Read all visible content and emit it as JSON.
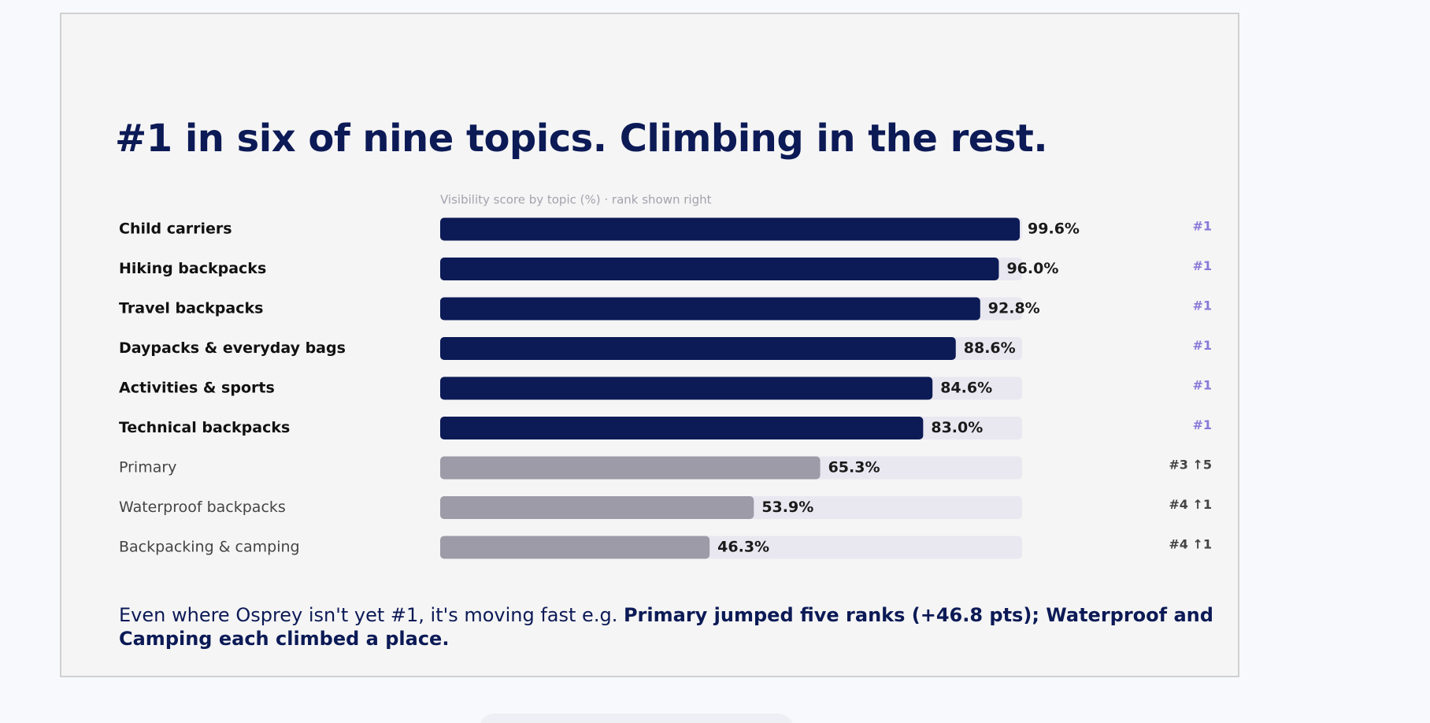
{
  "chart_data": {
    "type": "bar",
    "orientation": "horizontal",
    "title": "#1 in six of nine topics. Climbing in the rest.",
    "subtitle": "Visibility score by topic (%) · rank shown right",
    "categories": [
      "Child carriers",
      "Hiking backpacks",
      "Travel backpacks",
      "Daypacks & everyday bags",
      "Activities & sports",
      "Technical backpacks",
      "Primary",
      "Waterproof backpacks",
      "Backpacking & camping"
    ],
    "values": [
      99.6,
      96.0,
      92.8,
      88.6,
      84.6,
      83.0,
      65.3,
      53.9,
      46.3
    ],
    "value_labels": [
      "99.6%",
      "96.0%",
      "92.8%",
      "88.6%",
      "84.6%",
      "83.0%",
      "65.3%",
      "53.9%",
      "46.3%"
    ],
    "colors": [
      "#0c1a56",
      "#0c1a56",
      "#0c1a56",
      "#0c1a56",
      "#0c1a56",
      "#0c1a56",
      "#9d9ba8",
      "#9d9ba8",
      "#9d9ba8"
    ],
    "ranks": [
      "#1",
      "#1",
      "#1",
      "#1",
      "#1",
      "#1",
      "#3 ↑5",
      "#4 ↑1",
      "#4 ↑1"
    ],
    "xlim": [
      0,
      100
    ],
    "footnote": "Even where Osprey isn't yet #1, it's moving fast e.g.",
    "footnote_bold": "Primary jumped five ranks (+46.8 pts); Waterproof and Camping each climbed a place."
  }
}
